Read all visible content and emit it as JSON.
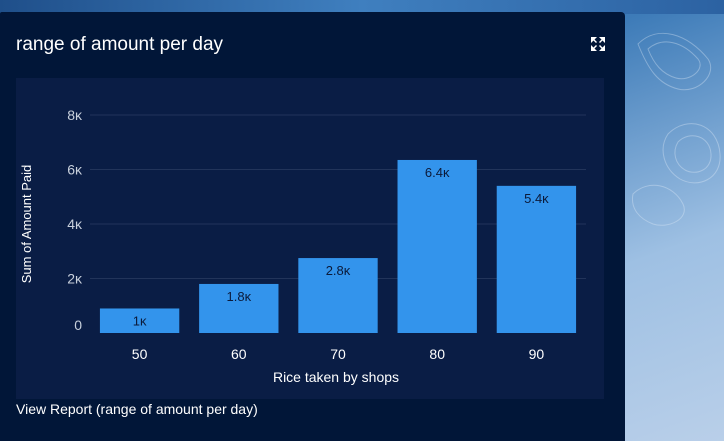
{
  "card": {
    "title": "range of amount per day",
    "footer_link": "View Report (range of amount per day)"
  },
  "icons": {
    "expand": "expand-icon"
  },
  "colors": {
    "card_bg": "#011638",
    "panel_bg": "#0a1d45",
    "bar": "#3394ec",
    "grid": "#22345a",
    "tick_text": "#c8d0dc",
    "axis_label": "#ffffff",
    "data_label": "#0b1a3a"
  },
  "chart_data": {
    "type": "bar",
    "categories": [
      "50",
      "60",
      "70",
      "80",
      "90"
    ],
    "values": [
      900,
      1800,
      2750,
      6350,
      5400
    ],
    "data_labels": [
      "1ĸ",
      "1.8ĸ",
      "2.8ĸ",
      "6.4ĸ",
      "5.4ĸ"
    ],
    "xlabel": "Rice taken by shops",
    "ylabel": "Sum of Amount Paid",
    "y_ticks": [
      0,
      2000,
      4000,
      6000,
      8000
    ],
    "y_tick_labels": [
      "0",
      "2ĸ",
      "4ĸ",
      "6ĸ",
      "8ĸ"
    ],
    "ylim": [
      0,
      8000
    ],
    "grid": true,
    "legend": "none"
  }
}
